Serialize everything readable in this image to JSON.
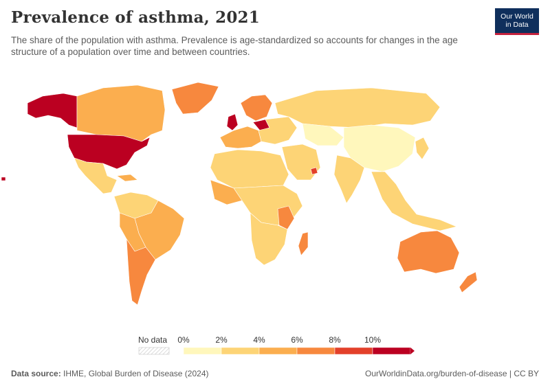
{
  "header": {
    "title": "Prevalence of asthma, 2021",
    "subtitle": "The share of the population with asthma. Prevalence is age-standardized so accounts for changes in the age structure of a population over time and between countries.",
    "logo_line1": "Our World",
    "logo_line2": "in Data"
  },
  "legend": {
    "no_data_label": "No data",
    "ticks": [
      "0%",
      "2%",
      "4%",
      "6%",
      "8%",
      "10%"
    ],
    "bins": [
      {
        "color": "#fff7bc"
      },
      {
        "color": "#fdd476"
      },
      {
        "color": "#fbae4f"
      },
      {
        "color": "#f7883e"
      },
      {
        "color": "#e3402a"
      },
      {
        "color": "#bb0021"
      }
    ]
  },
  "footer": {
    "source_label": "Data source:",
    "source_text": "IHME, Global Burden of Disease (2024)",
    "right_text": "OurWorldinData.org/burden-of-disease | CC BY"
  },
  "colors": {
    "no_data": "#e6e6e6",
    "border": "#ffffff"
  }
}
